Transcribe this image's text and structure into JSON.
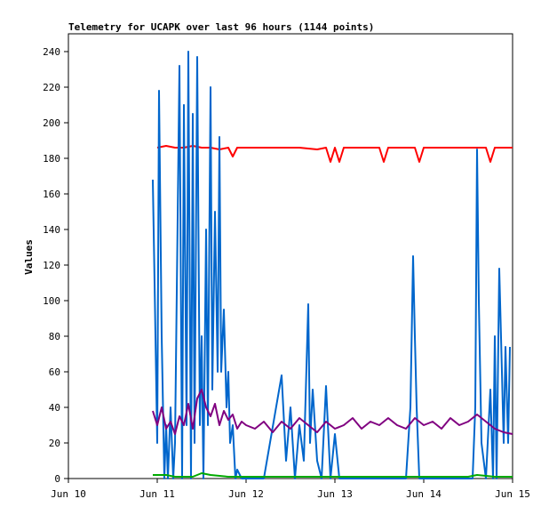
{
  "chart_data": {
    "type": "line",
    "title": "Telemetry for UCAPK over last 96 hours (1144 points)",
    "xlabel": "",
    "ylabel": "Values",
    "x_ticks": [
      "Jun 10",
      "Jun 11",
      "Jun 12",
      "Jun 13",
      "Jun 14",
      "Jun 15"
    ],
    "x_range_days": [
      10,
      15
    ],
    "ylim": [
      0,
      250
    ],
    "y_ticks": [
      0,
      20,
      40,
      60,
      80,
      100,
      120,
      140,
      160,
      180,
      200,
      220,
      240
    ],
    "grid": false,
    "series": [
      {
        "color": "#ff0000",
        "x": [
          11.0,
          11.1,
          11.2,
          11.3,
          11.4,
          11.5,
          11.6,
          11.7,
          11.8,
          11.85,
          11.9,
          12.0,
          12.2,
          12.4,
          12.6,
          12.8,
          12.9,
          12.95,
          13.0,
          13.05,
          13.1,
          13.2,
          13.4,
          13.5,
          13.55,
          13.6,
          13.8,
          13.9,
          13.95,
          14.0,
          14.2,
          14.4,
          14.6,
          14.7,
          14.75,
          14.8,
          14.9,
          15.0
        ],
        "y": [
          186,
          187,
          186,
          186,
          187,
          186,
          186,
          185,
          186,
          181,
          186,
          186,
          186,
          186,
          186,
          185,
          186,
          178,
          186,
          178,
          186,
          186,
          186,
          186,
          178,
          186,
          186,
          186,
          178,
          186,
          186,
          186,
          186,
          186,
          178,
          186,
          186,
          186
        ]
      },
      {
        "color": "#0066cc",
        "x": [
          10.95,
          10.97,
          11.0,
          11.02,
          11.05,
          11.08,
          11.1,
          11.12,
          11.15,
          11.18,
          11.2,
          11.25,
          11.28,
          11.3,
          11.33,
          11.35,
          11.38,
          11.4,
          11.42,
          11.45,
          11.48,
          11.5,
          11.52,
          11.55,
          11.57,
          11.6,
          11.62,
          11.65,
          11.68,
          11.7,
          11.72,
          11.75,
          11.78,
          11.8,
          11.82,
          11.85,
          11.88,
          11.9,
          11.95,
          12.0,
          12.2,
          12.4,
          12.45,
          12.5,
          12.55,
          12.6,
          12.65,
          12.7,
          12.72,
          12.75,
          12.8,
          12.85,
          12.9,
          12.95,
          13.0,
          13.05,
          13.1,
          13.2,
          13.4,
          13.6,
          13.8,
          13.85,
          13.88,
          13.9,
          13.92,
          13.95,
          14.0,
          14.1,
          14.3,
          14.4,
          14.5,
          14.55,
          14.58,
          14.6,
          14.62,
          14.65,
          14.7,
          14.75,
          14.78,
          14.8,
          14.82,
          14.85,
          14.88,
          14.9,
          14.92,
          14.95,
          14.97
        ],
        "y": [
          168,
          110,
          20,
          218,
          80,
          0,
          30,
          0,
          40,
          0,
          20,
          232,
          0,
          210,
          30,
          240,
          0,
          205,
          20,
          237,
          30,
          80,
          0,
          140,
          30,
          220,
          50,
          150,
          60,
          192,
          60,
          95,
          40,
          60,
          20,
          30,
          0,
          5,
          0,
          0,
          0,
          58,
          10,
          40,
          0,
          30,
          10,
          98,
          20,
          50,
          10,
          0,
          52,
          0,
          25,
          0,
          0,
          0,
          0,
          0,
          0,
          40,
          125,
          80,
          40,
          0,
          0,
          0,
          0,
          0,
          0,
          0,
          40,
          185,
          100,
          20,
          0,
          50,
          0,
          80,
          0,
          118,
          60,
          20,
          74,
          20,
          74
        ]
      },
      {
        "color": "#800080",
        "x": [
          10.95,
          11.0,
          11.05,
          11.1,
          11.15,
          11.2,
          11.25,
          11.3,
          11.35,
          11.4,
          11.45,
          11.5,
          11.55,
          11.6,
          11.65,
          11.7,
          11.75,
          11.8,
          11.85,
          11.9,
          11.95,
          12.0,
          12.1,
          12.2,
          12.3,
          12.4,
          12.5,
          12.6,
          12.7,
          12.8,
          12.9,
          13.0,
          13.1,
          13.2,
          13.3,
          13.4,
          13.5,
          13.6,
          13.7,
          13.8,
          13.9,
          14.0,
          14.1,
          14.2,
          14.3,
          14.4,
          14.5,
          14.6,
          14.7,
          14.8,
          14.9,
          15.0
        ],
        "y": [
          38,
          30,
          40,
          28,
          32,
          25,
          35,
          30,
          42,
          28,
          45,
          50,
          40,
          35,
          42,
          30,
          38,
          33,
          36,
          28,
          32,
          30,
          28,
          32,
          26,
          32,
          28,
          34,
          30,
          26,
          32,
          28,
          30,
          34,
          28,
          32,
          30,
          34,
          30,
          28,
          34,
          30,
          32,
          28,
          34,
          30,
          32,
          36,
          32,
          28,
          26,
          25
        ]
      },
      {
        "color": "#00aa00",
        "x": [
          10.95,
          11.1,
          11.2,
          11.4,
          11.5,
          11.6,
          11.8,
          12.0,
          12.5,
          13.0,
          13.5,
          14.0,
          14.5,
          14.6,
          14.8,
          15.0
        ],
        "y": [
          2,
          2,
          1,
          1,
          3,
          2,
          1,
          1,
          1,
          1,
          1,
          1,
          1,
          2,
          1,
          1
        ]
      }
    ]
  }
}
